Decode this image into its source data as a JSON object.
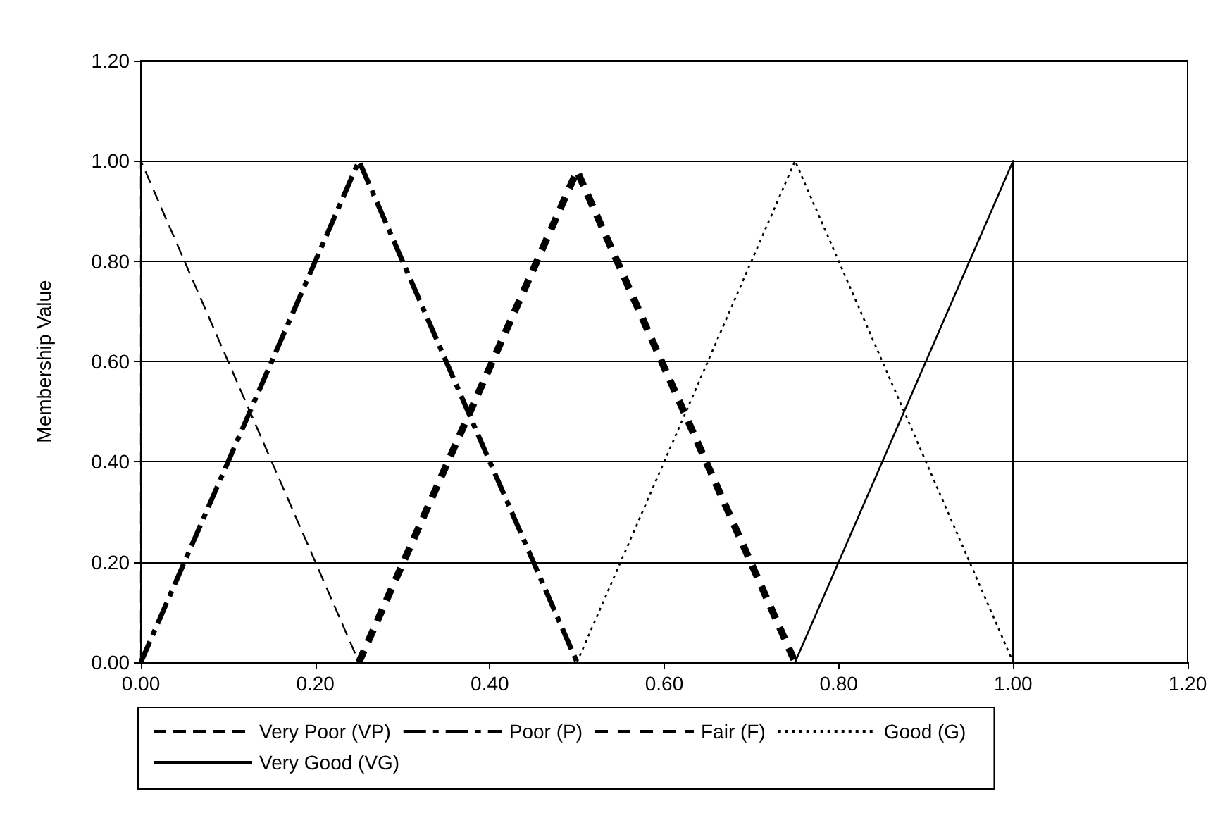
{
  "chart_data": {
    "type": "line",
    "ylabel": "Membership Value",
    "xlim": [
      0,
      1.2
    ],
    "xticks": [
      {
        "value": 0,
        "label": "0.00"
      },
      {
        "value": 0.2,
        "label": "0.20"
      },
      {
        "value": 0.4,
        "label": "0.40"
      },
      {
        "value": 0.6,
        "label": "0.60"
      },
      {
        "value": 0.8,
        "label": "0.80"
      },
      {
        "value": 1,
        "label": "1.00"
      },
      {
        "value": 1.2,
        "label": "1.20"
      }
    ],
    "ylim": [
      0,
      1.2
    ],
    "yticks": [
      {
        "value": 0,
        "label": "0.00"
      },
      {
        "value": 0.2,
        "label": "0.20"
      },
      {
        "value": 0.4,
        "label": "0.40"
      },
      {
        "value": 0.6,
        "label": "0.60"
      },
      {
        "value": 0.8,
        "label": "0.80"
      },
      {
        "value": 1,
        "label": "1.00"
      },
      {
        "value": 1.2,
        "label": "1.20"
      }
    ],
    "grid": "y",
    "legend": "bottom",
    "marker": "none",
    "series": [
      {
        "name": "Very Poor (VP)",
        "color": "#000000",
        "line_style": "dashed",
        "x": [
          0,
          0,
          0.25
        ],
        "values": [
          0,
          1,
          0
        ]
      },
      {
        "name": "Poor (P)",
        "color": "#000000",
        "line_style": "dashed",
        "x": [
          0,
          0.25,
          0.5
        ],
        "values": [
          0,
          1,
          0
        ]
      },
      {
        "name": "Fair (F)",
        "color": "#000000",
        "line_style": "dashed",
        "x": [
          0.25,
          0.5,
          0.75
        ],
        "values": [
          0,
          0.98,
          0
        ]
      },
      {
        "name": "Good (G)",
        "color": "#000000",
        "line_style": "dotted",
        "x": [
          0.5,
          0.75,
          1
        ],
        "values": [
          0,
          1,
          0
        ]
      },
      {
        "name": "Very Good (VG)",
        "color": "#000000",
        "line_style": "solid",
        "x": [
          0.75,
          1,
          1
        ],
        "values": [
          0,
          1,
          0
        ]
      }
    ]
  }
}
